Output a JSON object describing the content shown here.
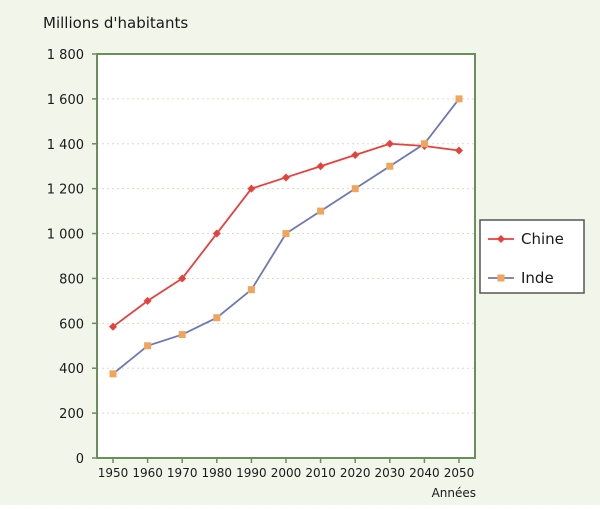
{
  "chart_data": {
    "type": "line",
    "ylabel": "Millions d'habitants",
    "xlabel": "Années",
    "categories": [
      "1950",
      "1960",
      "1970",
      "1980",
      "1990",
      "2000",
      "2010",
      "2020",
      "2030",
      "2040",
      "2050"
    ],
    "ylim": [
      0,
      1800
    ],
    "yticks": [
      "0",
      "200",
      "400",
      "600",
      "800",
      "1 000",
      "1 200",
      "1 400",
      "1 600",
      "1 800"
    ],
    "ytick_values": [
      0,
      200,
      400,
      600,
      800,
      1000,
      1200,
      1400,
      1600,
      1800
    ],
    "grid": true,
    "legend_position": "right",
    "series": [
      {
        "name": "Chine",
        "color": "#e8413c",
        "marker": "diamond",
        "values": [
          585,
          700,
          800,
          1000,
          1200,
          1250,
          1300,
          1350,
          1400,
          1390,
          1370
        ]
      },
      {
        "name": "Inde",
        "color": "#6e77b8",
        "marker_color": "#f2a55a",
        "marker": "square",
        "values": [
          375,
          500,
          550,
          625,
          750,
          1000,
          1100,
          1200,
          1300,
          1400,
          1600
        ]
      }
    ]
  },
  "colors": {
    "axis": "#6b8e5a",
    "background": "#f1f5ea",
    "grid": "#d7dccc"
  }
}
